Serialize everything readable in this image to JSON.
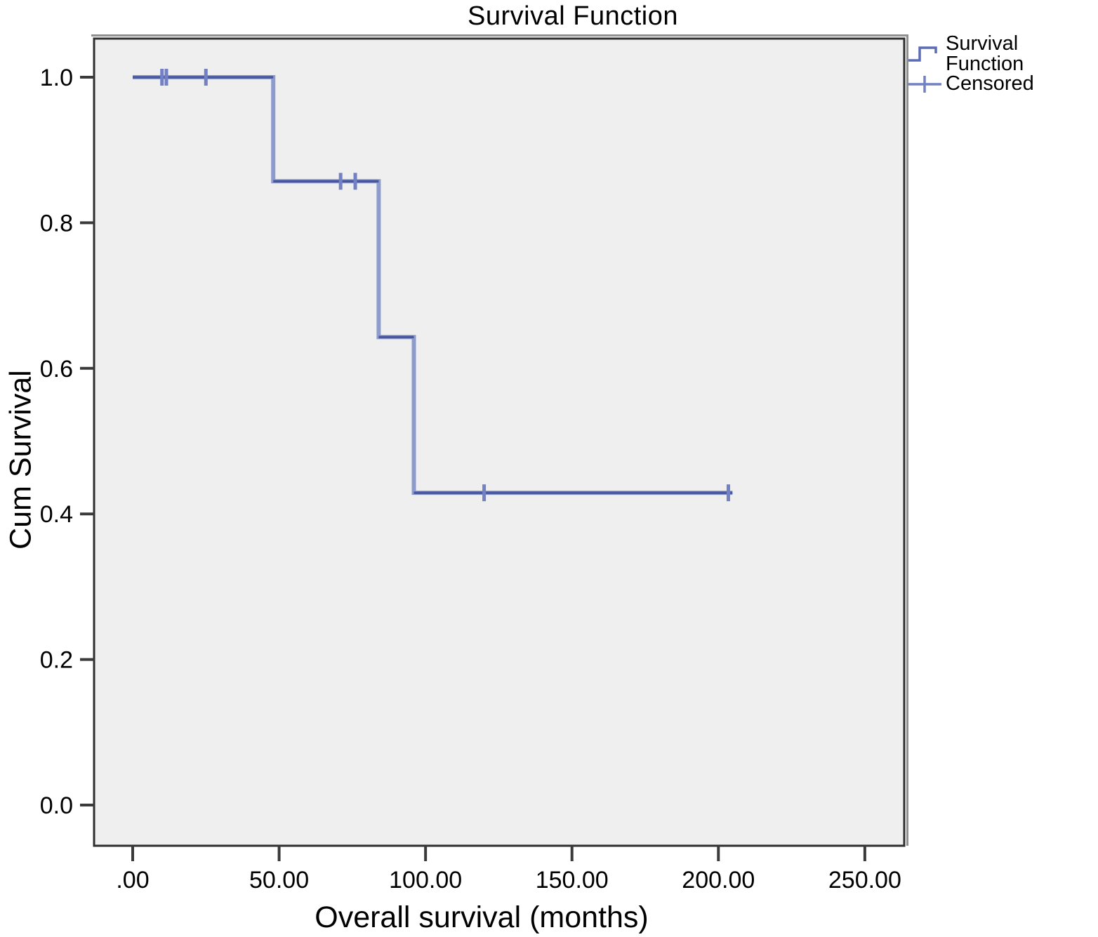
{
  "chart_data": {
    "type": "line",
    "chart_style": "kaplan-meier-step",
    "title": "Survival Function",
    "xlabel": "Overall survival (months)",
    "ylabel": "Cum Survival",
    "grid": false,
    "x_ticks": {
      "labels": [
        ".00",
        "50.00",
        "100.00",
        "150.00",
        "200.00",
        "250.00"
      ],
      "values": [
        0,
        50,
        100,
        150,
        200,
        250
      ]
    },
    "y_ticks": {
      "labels": [
        "0.0",
        "0.2",
        "0.4",
        "0.6",
        "0.8",
        "1.0"
      ],
      "values": [
        0,
        0.2,
        0.4,
        0.6,
        0.8,
        1.0
      ]
    },
    "xlim": [
      -13,
      263
    ],
    "ylim": [
      -0.056,
      1.051
    ],
    "legend": {
      "position": "top-right-outside",
      "entries": [
        {
          "label": "Survival Function",
          "symbol": "step-line"
        },
        {
          "label": "Censored",
          "symbol": "plus"
        }
      ]
    },
    "series": [
      {
        "name": "Survival Function",
        "type": "step",
        "points": [
          [
            0,
            1.0
          ],
          [
            48,
            1.0
          ],
          [
            48,
            0.857
          ],
          [
            84,
            0.857
          ],
          [
            84,
            0.643
          ],
          [
            96,
            0.643
          ],
          [
            96,
            0.429
          ],
          [
            204.8,
            0.429
          ]
        ]
      }
    ],
    "censored_points": [
      [
        10,
        1.0
      ],
      [
        11.5,
        1.0
      ],
      [
        25,
        1.0
      ],
      [
        71,
        0.857
      ],
      [
        76,
        0.857
      ],
      [
        120,
        0.429
      ],
      [
        203.4,
        0.429
      ]
    ],
    "colors": {
      "line_dark": "#46569f",
      "line_light": "#8d9ccd",
      "censor": "#7381c4",
      "legend_symbol": "#5b6cb5",
      "plot_bg": "#efefef",
      "axis": "#2f2f2f",
      "tick": "#3a3a3a",
      "shadow": "#8f8f8f",
      "text": "#000000"
    }
  }
}
